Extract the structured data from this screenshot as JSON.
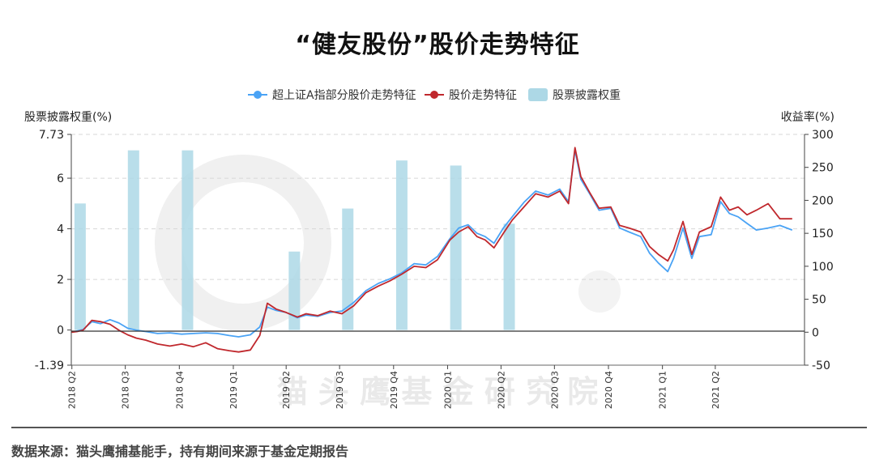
{
  "title": "“健友股份”股价走势特征",
  "source": "数据来源：猫头鹰捕基能手，持有期间来源于基金定期报告",
  "watermark": "猫 头 鹰 基 金 研 究 院",
  "chart_data": {
    "type": "line",
    "legend_position": "top-center",
    "grid": "horizontal-dashed",
    "left_axis": {
      "label": "股票披露权重(%)",
      "range": [
        -1.39,
        7.73
      ],
      "ticks": [
        "7.73",
        "6",
        "4",
        "2",
        "0",
        "-1.39"
      ],
      "tick_values": [
        7.73,
        6,
        4,
        2,
        0,
        -1.39
      ]
    },
    "right_axis": {
      "label": "收益率(%)",
      "range": [
        -50,
        300
      ],
      "ticks": [
        "300",
        "250",
        "200",
        "150",
        "100",
        "50",
        "0",
        "-50"
      ],
      "tick_values": [
        300,
        250,
        200,
        150,
        100,
        50,
        0,
        -50
      ]
    },
    "x_axis": {
      "range": [
        "2018-03-31",
        "2021-08-31"
      ],
      "ticks": [
        {
          "label": "2018 Q2",
          "date": "2018-04-01"
        },
        {
          "label": "2018 Q3",
          "date": "2018-07-01"
        },
        {
          "label": "2018 Q4",
          "date": "2018-10-01"
        },
        {
          "label": "2019 Q1",
          "date": "2019-01-01"
        },
        {
          "label": "2019 Q2",
          "date": "2019-04-01"
        },
        {
          "label": "2019 Q3",
          "date": "2019-07-01"
        },
        {
          "label": "2019 Q4",
          "date": "2019-10-01"
        },
        {
          "label": "2020 Q1",
          "date": "2020-01-01"
        },
        {
          "label": "2020 Q2",
          "date": "2020-04-01"
        },
        {
          "label": "2020 Q3",
          "date": "2020-07-01"
        },
        {
          "label": "2020 Q4",
          "date": "2020-10-01"
        },
        {
          "label": "2021 Q1",
          "date": "2021-01-01"
        },
        {
          "label": "2021 Q2",
          "date": "2021-04-01"
        }
      ]
    },
    "bars": {
      "name": "股票披露权重",
      "axis": "left",
      "color": "#add8e6",
      "points": [
        {
          "date": "2018-04-15",
          "value": 5.0
        },
        {
          "date": "2018-07-15",
          "value": 7.1
        },
        {
          "date": "2018-10-15",
          "value": 7.1
        },
        {
          "date": "2019-04-15",
          "value": 3.1
        },
        {
          "date": "2019-07-15",
          "value": 4.8
        },
        {
          "date": "2019-10-15",
          "value": 6.7
        },
        {
          "date": "2020-01-15",
          "value": 6.5
        },
        {
          "date": "2020-04-15",
          "value": 4.2
        }
      ]
    },
    "series": [
      {
        "name": "超上证A指部分股价走势特征",
        "axis": "right",
        "color": "#4aa3f5",
        "points": [
          [
            "2018-03-31",
            0
          ],
          [
            "2018-04-10",
            2
          ],
          [
            "2018-04-20",
            4
          ],
          [
            "2018-05-05",
            16
          ],
          [
            "2018-05-20",
            13
          ],
          [
            "2018-06-05",
            19
          ],
          [
            "2018-06-20",
            14
          ],
          [
            "2018-07-05",
            6
          ],
          [
            "2018-07-20",
            3
          ],
          [
            "2018-08-05",
            1
          ],
          [
            "2018-08-25",
            -2
          ],
          [
            "2018-09-15",
            -1
          ],
          [
            "2018-10-05",
            -3
          ],
          [
            "2018-10-25",
            -2
          ],
          [
            "2018-11-15",
            -1
          ],
          [
            "2018-12-05",
            -2
          ],
          [
            "2018-12-25",
            -5
          ],
          [
            "2019-01-10",
            -7
          ],
          [
            "2019-01-30",
            -4
          ],
          [
            "2019-02-15",
            8
          ],
          [
            "2019-02-28",
            38
          ],
          [
            "2019-03-15",
            33
          ],
          [
            "2019-04-01",
            30
          ],
          [
            "2019-04-20",
            22
          ],
          [
            "2019-05-05",
            26
          ],
          [
            "2019-05-25",
            24
          ],
          [
            "2019-06-15",
            30
          ],
          [
            "2019-07-05",
            32
          ],
          [
            "2019-07-25",
            45
          ],
          [
            "2019-08-15",
            63
          ],
          [
            "2019-09-05",
            74
          ],
          [
            "2019-09-25",
            81
          ],
          [
            "2019-10-15",
            90
          ],
          [
            "2019-11-05",
            104
          ],
          [
            "2019-11-25",
            102
          ],
          [
            "2019-12-15",
            115
          ],
          [
            "2020-01-05",
            142
          ],
          [
            "2020-01-20",
            158
          ],
          [
            "2020-02-05",
            163
          ],
          [
            "2020-02-20",
            150
          ],
          [
            "2020-03-05",
            145
          ],
          [
            "2020-03-20",
            135
          ],
          [
            "2020-04-05",
            158
          ],
          [
            "2020-04-20",
            175
          ],
          [
            "2020-05-10",
            197
          ],
          [
            "2020-05-30",
            214
          ],
          [
            "2020-06-20",
            208
          ],
          [
            "2020-07-10",
            217
          ],
          [
            "2020-07-25",
            198
          ],
          [
            "2020-08-05",
            276
          ],
          [
            "2020-08-15",
            232
          ],
          [
            "2020-08-30",
            210
          ],
          [
            "2020-09-15",
            185
          ],
          [
            "2020-10-05",
            188
          ],
          [
            "2020-10-20",
            158
          ],
          [
            "2020-11-05",
            152
          ],
          [
            "2020-11-25",
            145
          ],
          [
            "2020-12-10",
            120
          ],
          [
            "2020-12-25",
            105
          ],
          [
            "2021-01-10",
            92
          ],
          [
            "2021-01-20",
            112
          ],
          [
            "2021-02-05",
            158
          ],
          [
            "2021-02-20",
            112
          ],
          [
            "2021-03-05",
            145
          ],
          [
            "2021-03-25",
            148
          ],
          [
            "2021-04-10",
            198
          ],
          [
            "2021-04-25",
            180
          ],
          [
            "2021-05-10",
            175
          ],
          [
            "2021-05-25",
            165
          ],
          [
            "2021-06-10",
            155
          ],
          [
            "2021-06-30",
            158
          ],
          [
            "2021-07-20",
            162
          ],
          [
            "2021-08-10",
            155
          ]
        ]
      },
      {
        "name": "股价走势特征",
        "axis": "right",
        "color": "#c0282d",
        "points": [
          [
            "2018-03-31",
            0
          ],
          [
            "2018-04-10",
            1
          ],
          [
            "2018-04-20",
            3
          ],
          [
            "2018-05-05",
            18
          ],
          [
            "2018-05-20",
            16
          ],
          [
            "2018-06-05",
            12
          ],
          [
            "2018-06-20",
            3
          ],
          [
            "2018-07-05",
            -4
          ],
          [
            "2018-07-20",
            -9
          ],
          [
            "2018-08-05",
            -12
          ],
          [
            "2018-08-25",
            -18
          ],
          [
            "2018-09-15",
            -21
          ],
          [
            "2018-10-05",
            -18
          ],
          [
            "2018-10-25",
            -22
          ],
          [
            "2018-11-15",
            -16
          ],
          [
            "2018-12-05",
            -25
          ],
          [
            "2018-12-25",
            -28
          ],
          [
            "2019-01-10",
            -30
          ],
          [
            "2019-01-30",
            -27
          ],
          [
            "2019-02-15",
            -5
          ],
          [
            "2019-02-28",
            44
          ],
          [
            "2019-03-15",
            35
          ],
          [
            "2019-04-01",
            30
          ],
          [
            "2019-04-20",
            23
          ],
          [
            "2019-05-05",
            28
          ],
          [
            "2019-05-25",
            25
          ],
          [
            "2019-06-15",
            32
          ],
          [
            "2019-07-05",
            28
          ],
          [
            "2019-07-25",
            40
          ],
          [
            "2019-08-15",
            60
          ],
          [
            "2019-09-05",
            70
          ],
          [
            "2019-09-25",
            78
          ],
          [
            "2019-10-15",
            88
          ],
          [
            "2019-11-05",
            100
          ],
          [
            "2019-11-25",
            98
          ],
          [
            "2019-12-15",
            110
          ],
          [
            "2020-01-05",
            140
          ],
          [
            "2020-01-20",
            152
          ],
          [
            "2020-02-05",
            160
          ],
          [
            "2020-02-20",
            145
          ],
          [
            "2020-03-05",
            140
          ],
          [
            "2020-03-20",
            128
          ],
          [
            "2020-04-05",
            150
          ],
          [
            "2020-04-20",
            170
          ],
          [
            "2020-05-10",
            190
          ],
          [
            "2020-05-30",
            210
          ],
          [
            "2020-06-20",
            205
          ],
          [
            "2020-07-10",
            214
          ],
          [
            "2020-07-25",
            195
          ],
          [
            "2020-08-05",
            280
          ],
          [
            "2020-08-15",
            236
          ],
          [
            "2020-08-30",
            212
          ],
          [
            "2020-09-15",
            188
          ],
          [
            "2020-10-05",
            190
          ],
          [
            "2020-10-20",
            162
          ],
          [
            "2020-11-05",
            158
          ],
          [
            "2020-11-25",
            152
          ],
          [
            "2020-12-10",
            130
          ],
          [
            "2020-12-25",
            118
          ],
          [
            "2021-01-10",
            108
          ],
          [
            "2021-01-20",
            125
          ],
          [
            "2021-02-05",
            168
          ],
          [
            "2021-02-20",
            118
          ],
          [
            "2021-03-05",
            152
          ],
          [
            "2021-03-25",
            160
          ],
          [
            "2021-04-10",
            205
          ],
          [
            "2021-04-25",
            185
          ],
          [
            "2021-05-10",
            190
          ],
          [
            "2021-05-25",
            178
          ],
          [
            "2021-06-10",
            185
          ],
          [
            "2021-06-30",
            195
          ],
          [
            "2021-07-20",
            172
          ],
          [
            "2021-08-10",
            172
          ]
        ]
      }
    ]
  }
}
